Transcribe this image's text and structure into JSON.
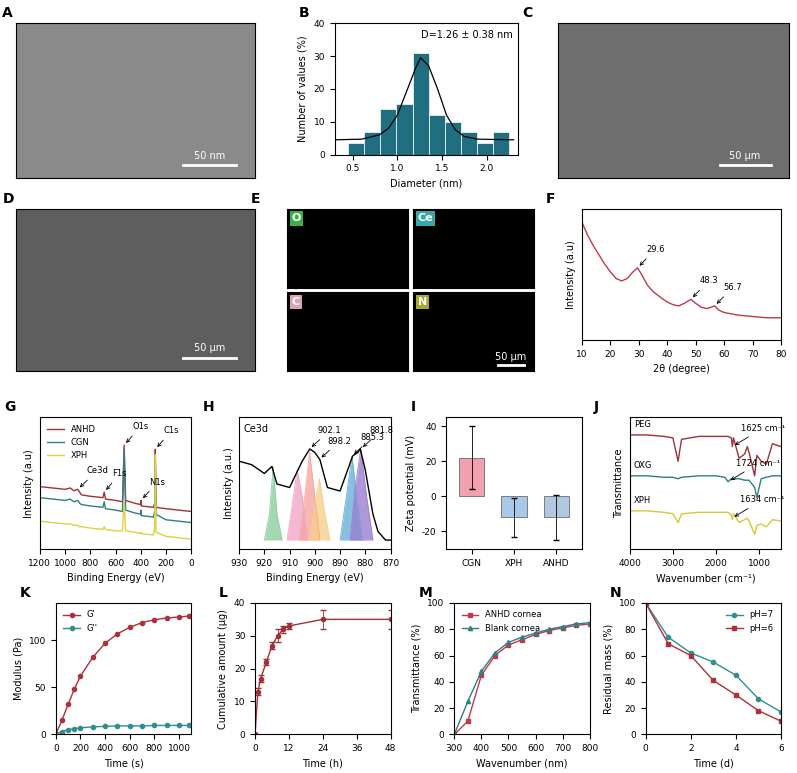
{
  "chart_data": [
    {
      "panel": "A",
      "type": "image",
      "scale_bar": "50 nm",
      "color": "#8a8a8a"
    },
    {
      "panel": "B",
      "type": "histogram",
      "xlabel": "Diameter (nm)",
      "ylabel": "Number of values (%)",
      "bins": [
        0.45,
        0.63,
        0.81,
        0.99,
        1.17,
        1.35,
        1.53,
        1.71,
        1.89,
        2.07,
        2.25
      ],
      "counts": [
        3.5,
        7,
        14,
        15.5,
        31,
        12,
        10,
        7,
        3.5,
        7
      ],
      "color": "#1f6f80",
      "fit": {
        "x": [
          0.3,
          0.6,
          0.8,
          0.9,
          1.0,
          1.1,
          1.2,
          1.26,
          1.35,
          1.45,
          1.55,
          1.65,
          1.75,
          1.9,
          2.3
        ],
        "values": [
          4.5,
          4.7,
          6,
          8,
          12,
          19,
          26,
          29.5,
          27,
          20,
          12,
          7.5,
          5.5,
          4.7,
          4.5
        ],
        "color": "#000000"
      },
      "annotations": [
        {
          "text": "D=1.26 ± 0.38 nm"
        }
      ],
      "xlim": [
        0.3,
        2.35
      ],
      "xticks": [
        0.5,
        1.0,
        1.5,
        2.0
      ],
      "ylim": [
        0,
        40
      ],
      "yticks": [
        0,
        10,
        20,
        30,
        40
      ]
    },
    {
      "panel": "C",
      "type": "image",
      "scale_bar": "50 μm",
      "color": "#6e6e6e"
    },
    {
      "panel": "D",
      "type": "image",
      "scale_bar": "50 μm",
      "color": "#5e5e5e"
    },
    {
      "panel": "E",
      "type": "image_grid",
      "scale_bar": "50 μm",
      "tiles": [
        {
          "label": "O",
          "color": "#3fae49"
        },
        {
          "label": "Ce",
          "color": "#3aa6a6"
        },
        {
          "label": "C",
          "color": "#d9a3b8"
        },
        {
          "label": "N",
          "color": "#a8a832"
        }
      ]
    },
    {
      "panel": "F",
      "type": "line",
      "xlabel": "2θ (degree)",
      "ylabel": "Intensity (a.u)",
      "tick_labels": "x",
      "series": [
        {
          "color": "#c0394b",
          "x": [
            10,
            12,
            14,
            16,
            18,
            20,
            22,
            24,
            26,
            28,
            29.6,
            31,
            33,
            35,
            38,
            40,
            42,
            44,
            46,
            48.3,
            50,
            52,
            54,
            56.7,
            58,
            60,
            65,
            70,
            75,
            80
          ],
          "values": [
            90,
            80,
            72,
            65,
            58,
            52,
            47,
            45,
            47,
            52,
            55,
            50,
            42,
            37,
            32,
            29,
            27,
            26,
            28,
            31,
            28,
            25,
            24,
            26,
            23,
            21,
            19,
            18,
            17,
            17
          ]
        }
      ],
      "annotations": [
        {
          "text": "29.6",
          "x": 29.6,
          "y": 55
        },
        {
          "text": "48.3",
          "x": 48.3,
          "y": 31
        },
        {
          "text": "56.7",
          "x": 56.7,
          "y": 26
        }
      ],
      "xlim": [
        10,
        80
      ],
      "xticks": [
        10,
        20,
        30,
        40,
        50,
        60,
        70,
        80
      ],
      "ylim": [
        0,
        100
      ]
    },
    {
      "panel": "G",
      "type": "line",
      "xlabel": "Binding Energy (eV)",
      "ylabel": "Intensity (a.u)",
      "tick_labels": "x",
      "legend": "upper left",
      "x": [
        1200,
        1100,
        1000,
        960,
        930,
        900,
        885,
        870,
        800,
        700,
        690,
        680,
        600,
        545,
        532,
        520,
        450,
        400,
        398,
        396,
        300,
        290,
        285,
        280,
        200,
        100,
        0
      ],
      "series": [
        {
          "name": "ANHD",
          "color": "#a0303a",
          "values": [
            70,
            69,
            68,
            69,
            67,
            68,
            66,
            64,
            63,
            62,
            66,
            61,
            60,
            59,
            100,
            60,
            58,
            57,
            60,
            56,
            55,
            58,
            97,
            55,
            54,
            53,
            52
          ]
        },
        {
          "name": "CGN",
          "color": "#2f7f86",
          "values": [
            62,
            61,
            60,
            61,
            59,
            60,
            58,
            57,
            56,
            55,
            59,
            54,
            53,
            52,
            97,
            53,
            51,
            50,
            53,
            49,
            48,
            52,
            90,
            50,
            46,
            45,
            44
          ]
        },
        {
          "name": "XPH",
          "color": "#e0d040",
          "values": [
            45,
            44,
            43,
            43,
            42,
            42,
            41,
            41,
            40,
            39,
            41,
            39,
            38,
            38,
            60,
            38,
            37,
            36,
            37,
            36,
            35,
            40,
            93,
            37,
            34,
            33,
            32
          ]
        }
      ],
      "annotations": [
        {
          "text": "Ce3d",
          "x": 900,
          "y": 68
        },
        {
          "text": "F1s",
          "x": 690,
          "y": 66
        },
        {
          "text": "O1s",
          "x": 532,
          "y": 100
        },
        {
          "text": "N1s",
          "x": 398,
          "y": 60
        },
        {
          "text": "C1s",
          "x": 285,
          "y": 97
        }
      ],
      "xlim": [
        1200,
        0
      ],
      "xticks": [
        1200,
        1000,
        800,
        600,
        400,
        200,
        0
      ],
      "ylim": [
        25,
        120
      ]
    },
    {
      "panel": "H",
      "type": "line",
      "xlabel": "Binding Energy (eV)",
      "ylabel": "Intensity (a.u.)",
      "tick_labels": "x",
      "title": "Ce3d",
      "series": [
        {
          "type": "area",
          "color": "#8fcf9f",
          "x": [
            920,
            918,
            916.5,
            915,
            913
          ],
          "values": [
            30,
            45,
            72,
            45,
            30
          ]
        },
        {
          "type": "area",
          "color": "#f2a6c8",
          "x": [
            911,
            909,
            907,
            905,
            903
          ],
          "values": [
            30,
            50,
            70,
            55,
            30
          ]
        },
        {
          "type": "area",
          "color": "#f4a6a0",
          "x": [
            906,
            904,
            902.1,
            900,
            898
          ],
          "values": [
            30,
            55,
            80,
            55,
            30
          ]
        },
        {
          "type": "area",
          "color": "#f6d08a",
          "x": [
            902,
            900,
            898.2,
            896,
            894
          ],
          "values": [
            30,
            50,
            65,
            45,
            30
          ]
        },
        {
          "type": "area",
          "color": "#6aaed6",
          "x": [
            890,
            887.5,
            885.3,
            883,
            881
          ],
          "values": [
            30,
            55,
            78,
            50,
            30
          ]
        },
        {
          "type": "area",
          "color": "#9b7fd1",
          "x": [
            886,
            884,
            881.8,
            879.5,
            877
          ],
          "values": [
            30,
            60,
            82,
            55,
            30
          ]
        },
        {
          "color": "#000000",
          "x": [
            930,
            925,
            920,
            917,
            915,
            910,
            905,
            902,
            900,
            898,
            895,
            890,
            887,
            885,
            883,
            882,
            880,
            877,
            875,
            872,
            870
          ],
          "values": [
            75,
            73,
            68,
            72,
            62,
            60,
            75,
            82,
            80,
            76,
            60,
            58,
            70,
            78,
            80,
            82,
            70,
            45,
            35,
            30,
            30
          ]
        }
      ],
      "annotations": [
        {
          "text": "902.1",
          "x": 902.1,
          "y": 82
        },
        {
          "text": "898.2",
          "x": 898.2,
          "y": 76
        },
        {
          "text": "885.3",
          "x": 885.3,
          "y": 78
        },
        {
          "text": "881.8",
          "x": 881.8,
          "y": 82
        }
      ],
      "xlim": [
        930,
        870
      ],
      "xticks": [
        930,
        920,
        910,
        900,
        890,
        880,
        870
      ],
      "ylim": [
        25,
        100
      ]
    },
    {
      "panel": "I",
      "type": "bar",
      "ylabel": "Zeta potential (mV)",
      "categories": [
        "CGN",
        "XPH",
        "ANHD"
      ],
      "values": [
        22,
        -12,
        -12
      ],
      "errors": [
        18,
        11,
        13
      ],
      "colors": [
        "#f0a0b0",
        "#a8c8e8",
        "#b0c8e0"
      ],
      "ylim": [
        -30,
        45
      ],
      "yticks": [
        -20,
        0,
        20,
        40
      ]
    },
    {
      "panel": "J",
      "type": "line",
      "xlabel": "Wavenumber (cm⁻¹)",
      "ylabel": "Transmittance",
      "tick_labels": "x",
      "x": [
        4000,
        3600,
        3200,
        3000,
        2880,
        2800,
        2400,
        2000,
        1800,
        1724,
        1650,
        1625,
        1600,
        1470,
        1340,
        1280,
        1240,
        1110,
        1060,
        960,
        840,
        700,
        500
      ],
      "series": [
        {
          "color": "#a0303a",
          "values": [
            88,
            88,
            87,
            86,
            70,
            85,
            87,
            87,
            87,
            87,
            86,
            80,
            86,
            72,
            75,
            80,
            76,
            60,
            74,
            70,
            68,
            82,
            80
          ]
        },
        {
          "color": "#2f7f86",
          "values": [
            60,
            60,
            59,
            59,
            58,
            59,
            60,
            60,
            59,
            56,
            58,
            58,
            58,
            58,
            57,
            57,
            57,
            52,
            45,
            58,
            59,
            60,
            60
          ]
        },
        {
          "color": "#d8c838",
          "values": [
            36,
            36,
            35,
            34,
            28,
            34,
            35,
            35,
            35,
            35,
            33,
            30,
            34,
            28,
            30,
            31,
            29,
            20,
            26,
            27,
            25,
            30,
            29
          ]
        }
      ],
      "annotations": [
        {
          "text": "PEG",
          "x": 3900,
          "y": 95,
          "arrow": false
        },
        {
          "text": "OXG",
          "x": 3900,
          "y": 67,
          "arrow": false
        },
        {
          "text": "XPH",
          "x": 3900,
          "y": 43,
          "arrow": false
        },
        {
          "text": "1625 cm⁻¹",
          "x": 1625,
          "y": 80
        },
        {
          "text": "1724 cm⁻¹",
          "x": 1724,
          "y": 56
        },
        {
          "text": "1634 cm⁻¹",
          "x": 1634,
          "y": 31
        }
      ],
      "xlim": [
        4000,
        500
      ],
      "xticks": [
        4000,
        3000,
        2000,
        1000
      ],
      "ylim": [
        10,
        100
      ]
    },
    {
      "panel": "K",
      "type": "line",
      "xlabel": "Time (s)",
      "ylabel": "Modulus (Pa)",
      "legend": "upper left",
      "x": [
        0,
        50,
        100,
        150,
        200,
        300,
        400,
        500,
        600,
        700,
        800,
        900,
        1000,
        1080
      ],
      "series": [
        {
          "name": "G'",
          "color": "#b0303a",
          "marker": "circle",
          "values": [
            0,
            15,
            32,
            48,
            62,
            82,
            97,
            107,
            114,
            119,
            122,
            124,
            125,
            126
          ]
        },
        {
          "name": "G''",
          "color": "#2f8f8f",
          "marker": "circle",
          "values": [
            0,
            3,
            5,
            6,
            7,
            8,
            8.5,
            9,
            9,
            9,
            9.5,
            9.5,
            9.5,
            9.5
          ]
        }
      ],
      "xlim": [
        0,
        1100
      ],
      "xticks": [
        0,
        200,
        400,
        600,
        800,
        1000
      ],
      "ylim": [
        0,
        140
      ],
      "yticks": [
        0,
        50,
        100
      ]
    },
    {
      "panel": "L",
      "type": "line",
      "xlabel": "Time (h)",
      "ylabel": "Cumulative amount (μg)",
      "series": [
        {
          "color": "#a0303a",
          "marker": "circle",
          "x": [
            0,
            1,
            2,
            4,
            6,
            8,
            10,
            12,
            24,
            48
          ],
          "values": [
            0,
            13,
            17,
            22,
            27,
            30,
            32,
            33,
            35,
            35
          ],
          "errors": [
            0,
            1,
            1,
            1,
            1,
            2,
            1,
            1,
            3,
            3
          ]
        }
      ],
      "xlim": [
        0,
        48
      ],
      "xticks": [
        0,
        12,
        24,
        36,
        48
      ],
      "ylim": [
        0,
        40
      ],
      "yticks": [
        0,
        10,
        20,
        30,
        40
      ]
    },
    {
      "panel": "M",
      "type": "line",
      "xlabel": "Wavenumber (nm)",
      "ylabel": "Transmittance (%)",
      "legend": "upper left",
      "x": [
        300,
        350,
        400,
        450,
        500,
        550,
        600,
        650,
        700,
        750,
        800
      ],
      "series": [
        {
          "name": "ANHD cornea",
          "color": "#c0394b",
          "marker": "square",
          "values": [
            0,
            10,
            45,
            60,
            68,
            72,
            76,
            79,
            81,
            83,
            84
          ]
        },
        {
          "name": "Blank cornea",
          "color": "#2f7f86",
          "marker": "triangle",
          "values": [
            0,
            25,
            48,
            62,
            70,
            74,
            77,
            80,
            82,
            84,
            85
          ]
        }
      ],
      "xlim": [
        300,
        800
      ],
      "xticks": [
        300,
        400,
        500,
        600,
        700,
        800
      ],
      "ylim": [
        0,
        100
      ],
      "yticks": [
        0,
        20,
        40,
        60,
        80,
        100
      ]
    },
    {
      "panel": "N",
      "type": "line",
      "xlabel": "Time (d)",
      "ylabel": "Residual mass (%)",
      "legend": "upper right",
      "x": [
        0,
        1,
        2,
        3,
        4,
        5,
        6
      ],
      "series": [
        {
          "name": "pH=7",
          "color": "#2f8f8f",
          "marker": "circle",
          "values": [
            100,
            74,
            62,
            55,
            45,
            27,
            17
          ]
        },
        {
          "name": "pH=6",
          "color": "#b0303a",
          "marker": "square",
          "values": [
            100,
            69,
            60,
            41,
            30,
            18,
            10
          ]
        }
      ],
      "xlim": [
        0,
        6
      ],
      "xticks": [
        0,
        2,
        4,
        6
      ],
      "ylim": [
        0,
        100
      ],
      "yticks": [
        0,
        20,
        40,
        60,
        80,
        100
      ]
    }
  ]
}
